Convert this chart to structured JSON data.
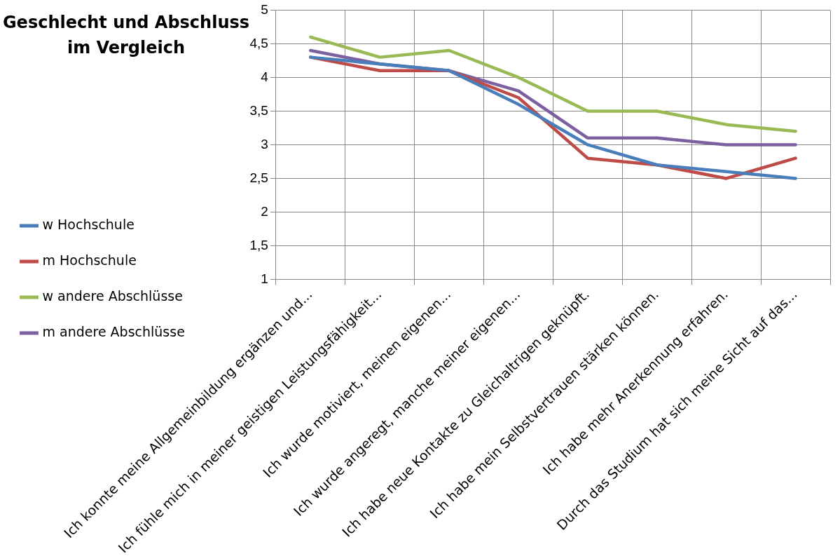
{
  "chart_data": {
    "type": "line",
    "title": "Geschlecht und Abschluss im Vergleich",
    "categories": [
      "Ich konnte meine Allgemeinbildung ergänzen und...",
      "Ich fühle mich in meiner geistigen Leistungsfähigkeit...",
      "Ich wurde motiviert, meinen eigenen...",
      "Ich wurde angeregt, manche meiner eigenen...",
      "Ich habe neue Kontakte zu Gleichaltrigen geknüpft.",
      "Ich habe mein Selbstvertrauen stärken können.",
      "Ich habe mehr Anerkennung erfahren.",
      "Durch das Studium hat sich meine Sicht auf das..."
    ],
    "series": [
      {
        "name": "w Hochschule",
        "color": "#4a7ebb",
        "values": [
          4.3,
          4.2,
          4.1,
          3.6,
          3.0,
          2.7,
          2.6,
          2.5
        ]
      },
      {
        "name": "m Hochschule",
        "color": "#be4b48",
        "values": [
          4.3,
          4.1,
          4.1,
          3.7,
          2.8,
          2.7,
          2.5,
          2.8
        ]
      },
      {
        "name": "w andere Abschlüsse",
        "color": "#98b954",
        "values": [
          4.6,
          4.3,
          4.4,
          4.0,
          3.5,
          3.5,
          3.3,
          3.2
        ]
      },
      {
        "name": "m andere Abschlüsse",
        "color": "#7d60a0",
        "values": [
          4.4,
          4.2,
          4.1,
          3.8,
          3.1,
          3.1,
          3.0,
          3.0
        ]
      }
    ],
    "ylim": [
      1,
      5
    ],
    "yticks": [
      1,
      {
        "value": 1.5,
        "label": "1,5"
      },
      2,
      {
        "value": 2.5,
        "label": "2,5"
      },
      3,
      {
        "value": 3.5,
        "label": "3,5"
      },
      4,
      {
        "value": 4.5,
        "label": "4,5"
      },
      5
    ],
    "grid": true,
    "legend": "left",
    "marker": "none",
    "line_style": "solid"
  }
}
